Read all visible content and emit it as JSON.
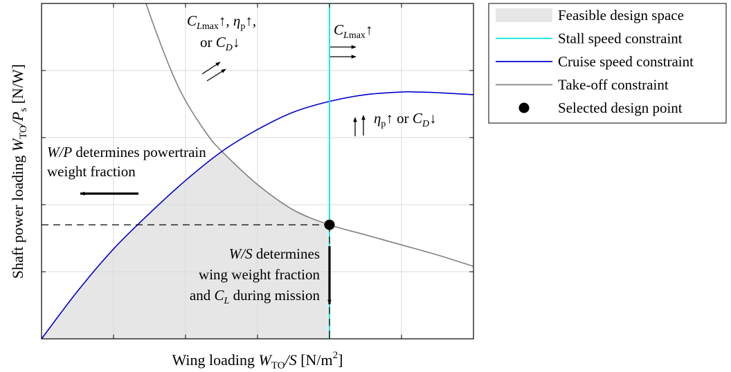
{
  "chart_data": {
    "type": "line",
    "title": "",
    "xlabel": {
      "prefix": "Wing loading ",
      "var": "W",
      "sub": "TO",
      "slash": "/",
      "var2": "S",
      "unit": " [N/m",
      "unit_sup": "2",
      "unit_end": "]"
    },
    "ylabel": {
      "prefix": "Shaft power loading ",
      "var": "W",
      "sub": "TO",
      "slash": "/",
      "var2": "P",
      "sub2": "s",
      "unit": " [N/W]"
    },
    "xlim": [
      0,
      6
    ],
    "ylim": [
      0,
      5
    ],
    "grid": true,
    "tick_labels_shown": false,
    "legend_position": "outside-top-right",
    "series": [
      {
        "name": "Feasible design space",
        "kind": "fill",
        "color": "#e6e6e6",
        "bounds": "below cruise speed constraint and take-off constraint, left of stall speed constraint"
      },
      {
        "name": "Stall speed constraint",
        "kind": "vline",
        "color": "#00e5e5",
        "x": 4.0
      },
      {
        "name": "Cruise speed constraint",
        "kind": "curve",
        "color": "#0000cc",
        "x": [
          0.0,
          0.5,
          1.0,
          1.5,
          2.0,
          2.5,
          3.0,
          3.5,
          4.0,
          4.5,
          5.0,
          5.2,
          5.5,
          6.0
        ],
        "y": [
          0.0,
          0.71,
          1.34,
          1.87,
          2.36,
          2.79,
          3.12,
          3.38,
          3.54,
          3.64,
          3.68,
          3.68,
          3.67,
          3.64
        ]
      },
      {
        "name": "Take-off constraint",
        "kind": "curve",
        "color": "#808080",
        "x": [
          1.45,
          1.6,
          1.8,
          2.0,
          2.3,
          2.5,
          3.0,
          3.5,
          4.0,
          4.5,
          5.0,
          5.5,
          6.0
        ],
        "y": [
          5.0,
          4.55,
          4.0,
          3.55,
          3.05,
          2.8,
          2.3,
          1.92,
          1.7,
          1.55,
          1.4,
          1.25,
          1.08
        ]
      },
      {
        "name": "Selected design point",
        "kind": "point",
        "color": "#000000",
        "x": 4.0,
        "y": 1.7
      }
    ],
    "design_guides": {
      "horizontal_dashed_y": 1.7,
      "vertical_dashed_x": 4.0
    },
    "annotations": {
      "takeoff_shift": {
        "line1_var": "C",
        "line1_sub": "L",
        "line1_subtext": "max",
        "line1_mid": "↑, ",
        "line1_var2": "η",
        "line1_sub2": "p",
        "line1_end": "↑,",
        "line2_pre": "or ",
        "line2_var": "C",
        "line2_sub": "D",
        "line2_end": "↓"
      },
      "stall_shift": {
        "var": "C",
        "sub": "L",
        "subtext": "max",
        "end": "↑"
      },
      "cruise_shift": {
        "var": "η",
        "sub": "p",
        "mid": "↑ or ",
        "var2": "C",
        "sub2": "D",
        "end": "↓"
      },
      "wp_note": {
        "line1_var": "W/P",
        "line1_rest": " determines powertrain",
        "line2": "weight fraction"
      },
      "ws_note": {
        "line1_var": "W/S",
        "line1_rest": " determines",
        "line2": "wing weight fraction",
        "line3_pre": "and ",
        "line3_var": "C",
        "line3_sub": "L",
        "line3_rest": " during mission"
      }
    },
    "legend": [
      {
        "label": "Feasible design space",
        "swatch": "fill",
        "color": "#e6e6e6"
      },
      {
        "label": "Stall speed constraint",
        "swatch": "line",
        "color": "#00e5e5"
      },
      {
        "label": "Cruise speed constraint",
        "swatch": "line",
        "color": "#0000cc"
      },
      {
        "label": "Take-off constraint",
        "swatch": "line",
        "color": "#808080"
      },
      {
        "label": "Selected design point",
        "swatch": "dot",
        "color": "#000000"
      }
    ]
  }
}
